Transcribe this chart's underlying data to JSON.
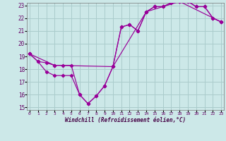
{
  "xlabel": "Windchill (Refroidissement éolien,°C)",
  "bg_color": "#cce8e8",
  "grid_color": "#aacccc",
  "line_color": "#990099",
  "xlim": [
    0,
    23
  ],
  "ylim": [
    15,
    23
  ],
  "yticks": [
    15,
    16,
    17,
    18,
    19,
    20,
    21,
    22,
    23
  ],
  "xticks": [
    0,
    1,
    2,
    3,
    4,
    5,
    6,
    7,
    8,
    9,
    10,
    11,
    12,
    13,
    14,
    15,
    16,
    17,
    18,
    19,
    20,
    21,
    22,
    23
  ],
  "xtick_labels": [
    "0",
    "1",
    "2",
    "3",
    "4",
    "5",
    "6",
    "7",
    "8",
    "9",
    "10",
    "11",
    "12",
    "13",
    "14",
    "15",
    "16",
    "17",
    "18",
    "19",
    "20",
    "21",
    "22",
    "23"
  ],
  "line1_x": [
    0,
    1,
    2,
    3,
    4,
    5,
    6,
    7,
    8,
    9,
    10,
    11,
    12,
    13,
    14,
    15,
    16,
    17,
    18,
    19,
    20,
    21,
    22,
    23
  ],
  "line1_y": [
    19.2,
    18.6,
    18.5,
    18.3,
    18.3,
    18.3,
    16.0,
    15.3,
    15.9,
    16.7,
    18.2,
    21.3,
    21.5,
    21.0,
    22.5,
    22.9,
    22.9,
    23.2,
    23.3,
    23.3,
    22.9,
    22.9,
    22.0,
    21.7
  ],
  "line2_x": [
    0,
    1,
    2,
    3,
    4,
    5,
    6,
    7,
    8,
    9,
    10,
    11,
    12,
    13,
    14,
    15,
    16,
    17,
    18,
    19,
    20,
    21,
    22,
    23
  ],
  "line2_y": [
    19.2,
    18.6,
    17.8,
    17.5,
    17.5,
    17.5,
    16.0,
    15.3,
    15.9,
    16.7,
    18.2,
    21.3,
    21.5,
    21.0,
    22.5,
    22.9,
    22.9,
    23.2,
    23.3,
    23.3,
    22.9,
    22.9,
    22.0,
    21.7
  ],
  "line3_x": [
    0,
    3,
    10,
    14,
    18,
    23
  ],
  "line3_y": [
    19.2,
    18.3,
    18.2,
    22.5,
    23.3,
    21.7
  ]
}
